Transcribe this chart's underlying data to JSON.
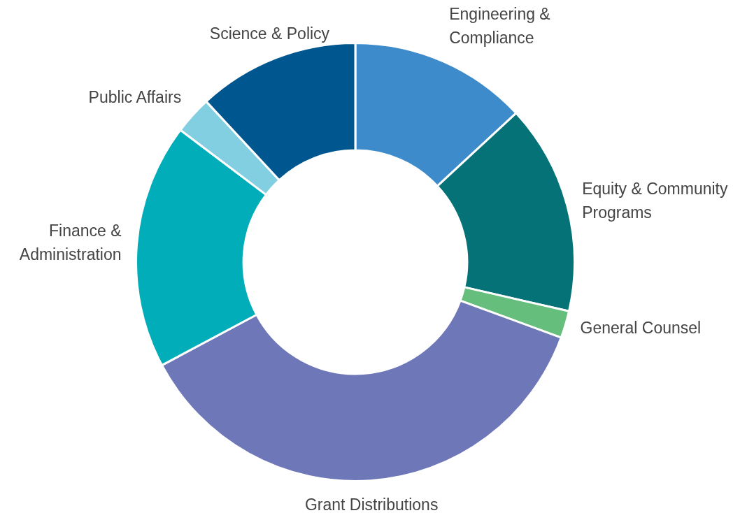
{
  "chart_data": {
    "type": "donut",
    "categories": [
      "Engineering & Compliance",
      "Equity & Community Programs",
      "General Counsel",
      "Grant Distributions",
      "Finance & Administration",
      "Public Affairs",
      "Science & Policy"
    ],
    "values": [
      13.1,
      15.5,
      2,
      36.6,
      18.1,
      2.8,
      11.9
    ],
    "colors": [
      "#3d8bcb",
      "#057278",
      "#65be7c",
      "#6e78b9",
      "#00adb9",
      "#82cfe2",
      "#00568e"
    ],
    "legend": false
  }
}
